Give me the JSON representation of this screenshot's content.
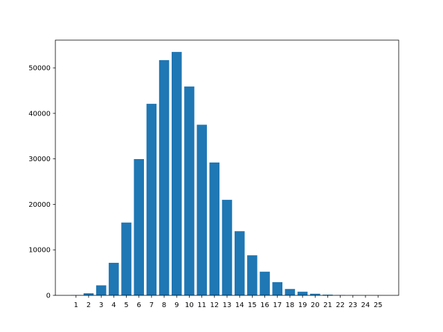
{
  "chart_data": {
    "type": "bar",
    "x": [
      1,
      2,
      3,
      4,
      5,
      6,
      7,
      8,
      9,
      10,
      11,
      12,
      13,
      14,
      15,
      16,
      17,
      18,
      19,
      20,
      21,
      22,
      23,
      24,
      25
    ],
    "values": [
      50,
      450,
      2200,
      7150,
      16000,
      29950,
      42100,
      51700,
      53500,
      45900,
      37500,
      29200,
      21000,
      14100,
      8800,
      5200,
      2900,
      1400,
      800,
      350,
      150,
      60,
      20,
      10,
      5
    ],
    "color": "#1f77b4",
    "xlim": [
      -0.64,
      26.64
    ],
    "xticks": [
      1,
      2,
      3,
      4,
      5,
      6,
      7,
      8,
      9,
      10,
      11,
      12,
      13,
      14,
      15,
      16,
      17,
      18,
      19,
      20,
      21,
      22,
      23,
      24,
      25
    ],
    "ylim": [
      0,
      56100
    ],
    "yticks": [
      0,
      10000,
      20000,
      30000,
      40000,
      50000
    ],
    "grid": false
  }
}
